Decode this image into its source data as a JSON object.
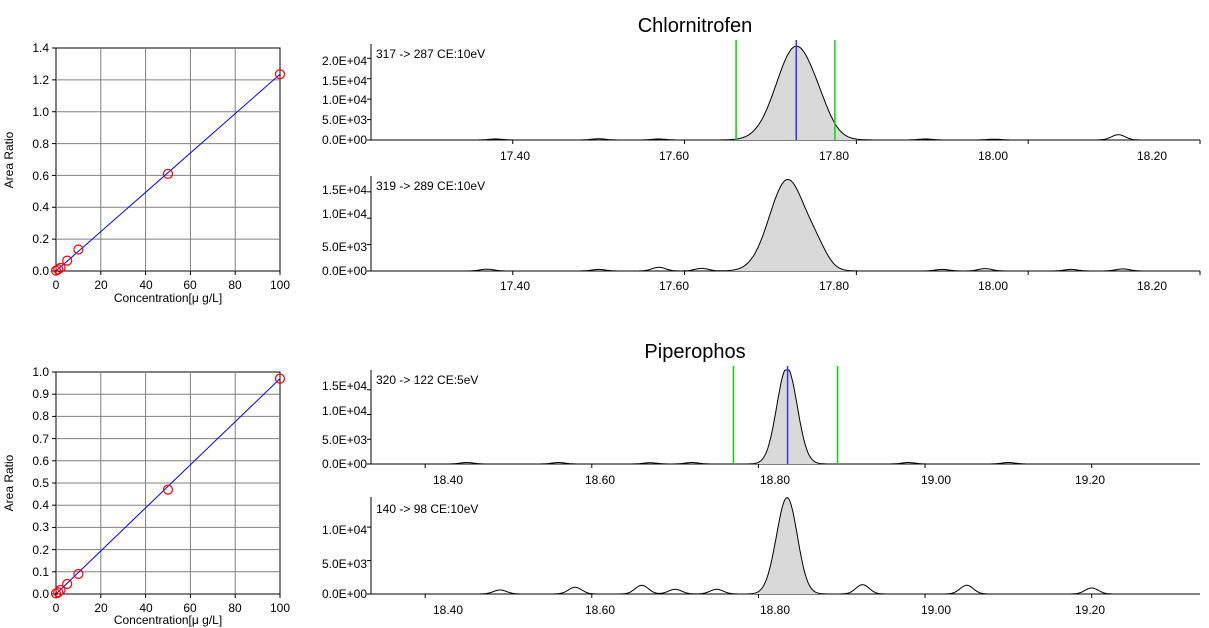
{
  "compounds": [
    {
      "name": "Chlornitrofen",
      "calibration": {
        "ylabel": "Area Ratio",
        "xlabel": "Concentration[μ g/L]",
        "xticks": [
          "0",
          "20",
          "40",
          "60",
          "80",
          "100"
        ],
        "yticks": [
          "0.0",
          "0.2",
          "0.4",
          "0.6",
          "0.8",
          "1.0",
          "1.2",
          "1.4"
        ]
      },
      "chromatograms": [
        {
          "transition": "317 -> 287 CE:10eV",
          "yticks": [
            "0.0E+00",
            "5.0E+03",
            "1.0E+04",
            "1.5E+04",
            "2.0E+04"
          ],
          "xticks": [
            "17.40",
            "17.60",
            "17.80",
            "18.00",
            "18.20"
          ]
        },
        {
          "transition": "319 -> 289 CE:10eV",
          "yticks": [
            "0.0E+00",
            "5.0E+03",
            "1.0E+04",
            "1.5E+04"
          ],
          "xticks": [
            "17.40",
            "17.60",
            "17.80",
            "18.00",
            "18.20"
          ]
        }
      ]
    },
    {
      "name": "Piperophos",
      "calibration": {
        "ylabel": "Area Ratio",
        "xlabel": "Concentration[μ g/L]",
        "xticks": [
          "0",
          "20",
          "40",
          "60",
          "80",
          "100"
        ],
        "yticks": [
          "0.0",
          "0.1",
          "0.2",
          "0.3",
          "0.4",
          "0.5",
          "0.6",
          "0.7",
          "0.8",
          "0.9",
          "1.0"
        ]
      },
      "chromatograms": [
        {
          "transition": "320 -> 122 CE:5eV",
          "yticks": [
            "0.0E+00",
            "5.0E+03",
            "1.0E+04",
            "1.5E+04"
          ],
          "xticks": [
            "18.40",
            "18.60",
            "18.80",
            "19.00",
            "19.20"
          ]
        },
        {
          "transition": "140 -> 98 CE:10eV",
          "yticks": [
            "0.0E+00",
            "5.0E+03",
            "1.0E+04"
          ],
          "xticks": [
            "18.40",
            "18.60",
            "18.80",
            "19.00",
            "19.20"
          ]
        }
      ]
    }
  ],
  "colors": {
    "calibration_line": "#0000ff",
    "calibration_point": "#ff0000",
    "grid": "#808080",
    "peak_fill": "#d9d9d9",
    "peak_line": "#000000",
    "window_marker": "#00dd00",
    "rt_marker": "#3333ff"
  },
  "chart_data": [
    {
      "type": "scatter",
      "title": "",
      "compound": "Chlornitrofen",
      "xlabel": "Concentration[μ g/L]",
      "ylabel": "Area Ratio",
      "xlim": [
        0,
        100
      ],
      "ylim": [
        0,
        1.4
      ],
      "grid": true,
      "points": {
        "x": [
          0,
          1,
          2,
          5,
          10,
          50,
          100
        ],
        "y": [
          0.002,
          0.01,
          0.02,
          0.065,
          0.135,
          0.61,
          1.235
        ]
      },
      "fit_line": {
        "x": [
          0,
          100
        ],
        "y": [
          0.0,
          1.235
        ]
      }
    },
    {
      "type": "line",
      "title": "Chlornitrofen",
      "transition": "317 -> 287 CE:10eV",
      "xlim": [
        17.235,
        18.2
      ],
      "ylim": [
        0,
        23500
      ],
      "peak": {
        "rt": 17.73,
        "height": 22900,
        "width": 0.023
      },
      "peak_shoulder": {
        "rt": 17.76,
        "height": 1500,
        "width": 0.012
      },
      "noise": [
        {
          "rt": 17.38,
          "height": 250
        },
        {
          "rt": 17.5,
          "height": 300
        },
        {
          "rt": 17.57,
          "height": 250
        },
        {
          "rt": 17.88,
          "height": 250
        },
        {
          "rt": 17.96,
          "height": 200
        },
        {
          "rt": 18.105,
          "height": 1300
        }
      ],
      "window_markers": [
        17.66,
        17.775
      ],
      "rt_marker": 17.73
    },
    {
      "type": "line",
      "title": "",
      "transition": "319 -> 289 CE:10eV",
      "xlim": [
        17.235,
        18.2
      ],
      "ylim": [
        0,
        18000
      ],
      "peak": {
        "rt": 17.72,
        "height": 17300,
        "width": 0.021
      },
      "peak_shoulder": {
        "rt": 17.755,
        "height": 2500,
        "width": 0.012
      },
      "noise": [
        {
          "rt": 17.37,
          "height": 350
        },
        {
          "rt": 17.5,
          "height": 300
        },
        {
          "rt": 17.57,
          "height": 700
        },
        {
          "rt": 17.62,
          "height": 500
        },
        {
          "rt": 17.9,
          "height": 300
        },
        {
          "rt": 17.95,
          "height": 450
        },
        {
          "rt": 18.05,
          "height": 300
        },
        {
          "rt": 18.11,
          "height": 400
        }
      ],
      "window_markers": [],
      "rt_marker": null
    },
    {
      "type": "scatter",
      "title": "",
      "compound": "Piperophos",
      "xlabel": "Concentration[μ g/L]",
      "ylabel": "Area Ratio",
      "xlim": [
        0,
        100
      ],
      "ylim": [
        0,
        1.0
      ],
      "grid": true,
      "points": {
        "x": [
          0,
          1,
          2,
          5,
          10,
          50,
          100
        ],
        "y": [
          0.002,
          0.008,
          0.018,
          0.045,
          0.09,
          0.47,
          0.97
        ]
      },
      "fit_line": {
        "x": [
          0,
          100
        ],
        "y": [
          0.0,
          0.97
        ]
      }
    },
    {
      "type": "line",
      "title": "Piperophos",
      "transition": "320 -> 122 CE:5eV",
      "xlim": [
        18.335,
        19.33
      ],
      "ylim": [
        0,
        19000
      ],
      "peak": {
        "rt": 18.835,
        "height": 18500,
        "width": 0.012
      },
      "peak_shoulder": {
        "rt": 18.825,
        "height": 1500,
        "width": 0.01
      },
      "noise": [
        {
          "rt": 18.45,
          "height": 300
        },
        {
          "rt": 18.56,
          "height": 300
        },
        {
          "rt": 18.67,
          "height": 250
        },
        {
          "rt": 18.72,
          "height": 300
        },
        {
          "rt": 18.98,
          "height": 300
        },
        {
          "rt": 19.1,
          "height": 300
        }
      ],
      "window_markers": [
        18.77,
        18.895
      ],
      "rt_marker": 18.835
    },
    {
      "type": "line",
      "title": "",
      "transition": "140 -> 98 CE:10eV",
      "xlim": [
        18.335,
        19.33
      ],
      "ylim": [
        0,
        14500
      ],
      "peak": {
        "rt": 18.835,
        "height": 14000,
        "width": 0.012
      },
      "peak_shoulder": {
        "rt": 18.82,
        "height": 1200,
        "width": 0.01
      },
      "noise": [
        {
          "rt": 18.49,
          "height": 600
        },
        {
          "rt": 18.58,
          "height": 1000
        },
        {
          "rt": 18.66,
          "height": 1300
        },
        {
          "rt": 18.7,
          "height": 700
        },
        {
          "rt": 18.75,
          "height": 700
        },
        {
          "rt": 18.925,
          "height": 1400
        },
        {
          "rt": 19.05,
          "height": 1300
        },
        {
          "rt": 19.2,
          "height": 900
        }
      ],
      "window_markers": [],
      "rt_marker": null
    }
  ]
}
